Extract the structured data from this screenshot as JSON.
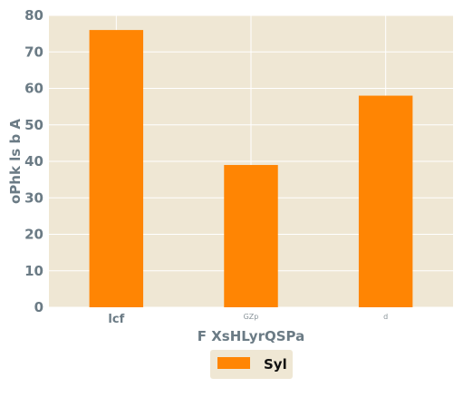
{
  "chart_data": {
    "type": "bar",
    "categories": [
      "lcf",
      "GZp",
      "d"
    ],
    "series": [
      {
        "name": "Syl",
        "values": [
          76,
          39,
          58
        ],
        "color": "#ff8503"
      }
    ],
    "xlabel": "F XsHLyrQSPa",
    "ylabel": "oPhk ls b A",
    "ylim": [
      0,
      80
    ],
    "yticks": [
      0,
      10,
      20,
      30,
      40,
      50,
      60,
      70,
      80
    ],
    "grid": true,
    "legend_position": "bottom-center",
    "background_color": "#efe7d4",
    "grid_color": "#ffffff"
  }
}
